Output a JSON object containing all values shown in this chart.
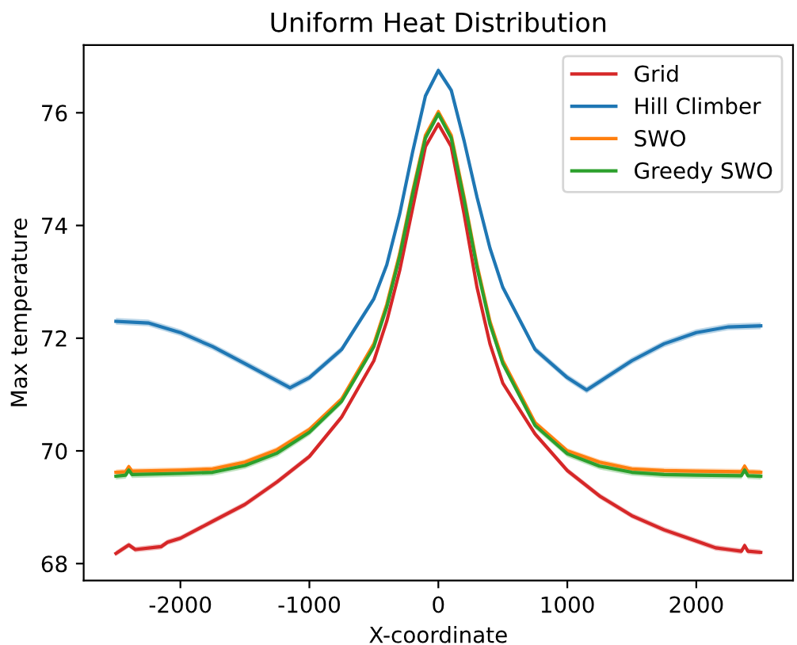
{
  "chart_data": {
    "type": "line",
    "title": "Uniform Heat Distribution",
    "xlabel": "X-coordinate",
    "ylabel": "Max temperature",
    "xlim": [
      -2750,
      2750
    ],
    "xticks": [
      -2000,
      -1000,
      0,
      1000,
      2000
    ],
    "ylim": [
      67.7,
      77.2
    ],
    "yticks": [
      68,
      70,
      72,
      74,
      76
    ],
    "legend": "top right",
    "grid": false,
    "marker": "none",
    "line_style": "solid",
    "series": [
      {
        "name": "Grid",
        "color": "#d62728",
        "x": [
          -2500,
          -2400,
          -2350,
          -2150,
          -2100,
          -2000,
          -1750,
          -1500,
          -1250,
          -1000,
          -750,
          -500,
          -400,
          -300,
          -200,
          -100,
          0,
          100,
          200,
          300,
          400,
          500,
          750,
          1000,
          1250,
          1500,
          1750,
          2000,
          2150,
          2250,
          2350,
          2375,
          2400,
          2500
        ],
        "values": [
          68.18,
          68.33,
          68.25,
          68.3,
          68.38,
          68.45,
          68.75,
          69.05,
          69.45,
          69.9,
          70.6,
          71.6,
          72.3,
          73.2,
          74.3,
          75.4,
          75.8,
          75.4,
          74.2,
          72.9,
          71.9,
          71.2,
          70.3,
          69.65,
          69.2,
          68.85,
          68.6,
          68.4,
          68.28,
          68.25,
          68.22,
          68.32,
          68.22,
          68.2
        ],
        "lower": [
          68.13,
          68.28,
          68.2,
          68.25,
          68.33,
          68.4,
          68.7,
          69.0,
          69.4,
          69.85,
          70.55,
          71.55,
          72.25,
          73.15,
          74.25,
          75.35,
          75.75,
          75.35,
          74.15,
          72.85,
          71.85,
          71.15,
          70.25,
          69.6,
          69.15,
          68.8,
          68.55,
          68.35,
          68.23,
          68.2,
          68.17,
          68.27,
          68.17,
          68.15
        ],
        "upper": [
          68.23,
          68.38,
          68.3,
          68.35,
          68.43,
          68.5,
          68.8,
          69.1,
          69.5,
          69.95,
          70.65,
          71.65,
          72.35,
          73.25,
          74.35,
          75.45,
          75.85,
          75.45,
          74.25,
          72.95,
          71.95,
          71.25,
          70.35,
          69.7,
          69.25,
          68.9,
          68.65,
          68.45,
          68.33,
          68.3,
          68.27,
          68.37,
          68.27,
          68.25
        ]
      },
      {
        "name": "Hill Climber",
        "color": "#1f77b4",
        "x": [
          -2500,
          -2250,
          -2000,
          -1750,
          -1500,
          -1150,
          -1000,
          -750,
          -500,
          -400,
          -300,
          -200,
          -100,
          0,
          100,
          200,
          300,
          400,
          500,
          750,
          1000,
          1150,
          1500,
          1750,
          2000,
          2250,
          2500
        ],
        "values": [
          72.3,
          72.27,
          72.1,
          71.85,
          71.55,
          71.12,
          71.3,
          71.8,
          72.7,
          73.3,
          74.2,
          75.3,
          76.3,
          76.75,
          76.4,
          75.5,
          74.5,
          73.6,
          72.9,
          71.8,
          71.3,
          71.08,
          71.6,
          71.9,
          72.1,
          72.2,
          72.22
        ],
        "lower": [
          72.24,
          72.21,
          72.04,
          71.79,
          71.49,
          71.06,
          71.24,
          71.74,
          72.64,
          73.24,
          74.14,
          75.24,
          76.24,
          76.69,
          76.34,
          75.44,
          74.44,
          73.54,
          72.84,
          71.74,
          71.24,
          71.02,
          71.54,
          71.84,
          72.04,
          72.14,
          72.16
        ],
        "upper": [
          72.36,
          72.33,
          72.16,
          71.91,
          71.61,
          71.18,
          71.36,
          71.86,
          72.76,
          73.36,
          74.26,
          75.36,
          76.36,
          76.81,
          76.46,
          75.56,
          74.56,
          73.66,
          72.96,
          71.86,
          71.36,
          71.14,
          71.66,
          71.96,
          72.16,
          72.26,
          72.28
        ]
      },
      {
        "name": "SWO",
        "color": "#ff7f0e",
        "x": [
          -2500,
          -2425,
          -2400,
          -2375,
          -2000,
          -1750,
          -1500,
          -1250,
          -1000,
          -750,
          -500,
          -400,
          -300,
          -200,
          -100,
          0,
          100,
          200,
          300,
          400,
          500,
          750,
          1000,
          1250,
          1500,
          1750,
          2000,
          2350,
          2375,
          2400,
          2500
        ],
        "values": [
          69.62,
          69.63,
          69.72,
          69.64,
          69.66,
          69.68,
          69.8,
          70.02,
          70.38,
          70.92,
          71.9,
          72.6,
          73.5,
          74.6,
          75.6,
          76.02,
          75.6,
          74.5,
          73.3,
          72.3,
          71.6,
          70.5,
          70.0,
          69.8,
          69.68,
          69.65,
          69.64,
          69.63,
          69.73,
          69.63,
          69.62
        ],
        "lower": [
          69.57,
          69.58,
          69.67,
          69.59,
          69.61,
          69.63,
          69.75,
          69.97,
          70.33,
          70.87,
          71.85,
          72.55,
          73.45,
          74.55,
          75.55,
          75.97,
          75.55,
          74.45,
          73.25,
          72.25,
          71.55,
          70.45,
          69.95,
          69.75,
          69.63,
          69.6,
          69.59,
          69.58,
          69.68,
          69.58,
          69.57
        ],
        "upper": [
          69.67,
          69.68,
          69.77,
          69.69,
          69.71,
          69.73,
          69.85,
          70.07,
          70.43,
          70.97,
          71.95,
          72.65,
          73.55,
          74.65,
          75.65,
          76.07,
          75.65,
          74.55,
          73.35,
          72.35,
          71.65,
          70.55,
          70.05,
          69.85,
          69.73,
          69.7,
          69.69,
          69.68,
          69.78,
          69.68,
          69.67
        ]
      },
      {
        "name": "Greedy SWO",
        "color": "#2ca02c",
        "x": [
          -2500,
          -2425,
          -2400,
          -2375,
          -2000,
          -1750,
          -1500,
          -1250,
          -1000,
          -750,
          -500,
          -400,
          -300,
          -200,
          -100,
          0,
          100,
          200,
          300,
          400,
          500,
          750,
          1000,
          1250,
          1500,
          1750,
          2000,
          2350,
          2375,
          2400,
          2500
        ],
        "values": [
          69.55,
          69.57,
          69.66,
          69.58,
          69.6,
          69.62,
          69.74,
          69.96,
          70.33,
          70.88,
          71.85,
          72.55,
          73.45,
          74.55,
          75.55,
          75.98,
          75.55,
          74.45,
          73.25,
          72.25,
          71.55,
          70.45,
          69.95,
          69.73,
          69.62,
          69.58,
          69.57,
          69.56,
          69.66,
          69.56,
          69.55
        ],
        "lower": [
          69.49,
          69.51,
          69.6,
          69.52,
          69.54,
          69.56,
          69.68,
          69.9,
          70.27,
          70.82,
          71.79,
          72.49,
          73.39,
          74.49,
          75.49,
          75.92,
          75.49,
          74.39,
          73.19,
          72.19,
          71.49,
          70.39,
          69.89,
          69.67,
          69.56,
          69.52,
          69.51,
          69.5,
          69.6,
          69.5,
          69.49
        ],
        "upper": [
          69.61,
          69.63,
          69.72,
          69.64,
          69.66,
          69.68,
          69.8,
          70.02,
          70.39,
          70.94,
          71.91,
          72.61,
          73.51,
          74.61,
          75.61,
          76.04,
          75.61,
          74.51,
          73.31,
          72.31,
          71.61,
          70.51,
          70.01,
          69.79,
          69.68,
          69.64,
          69.63,
          69.62,
          69.72,
          69.62,
          69.61
        ]
      }
    ]
  }
}
